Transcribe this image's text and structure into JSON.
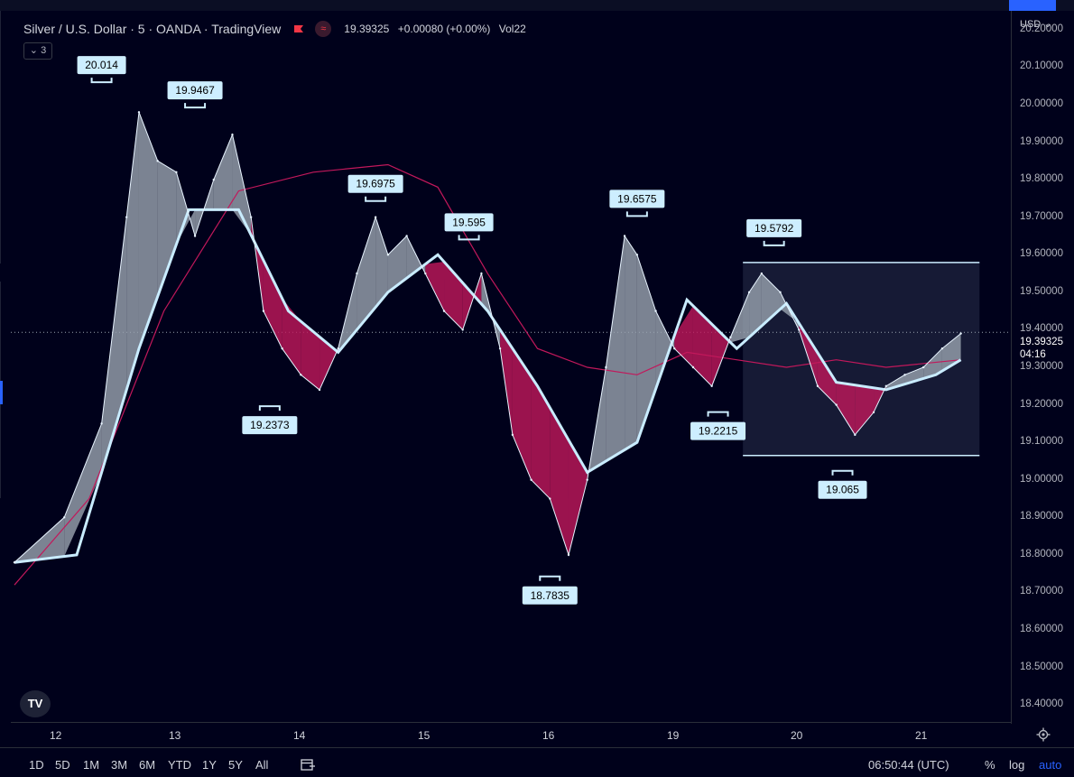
{
  "header": {
    "symbol": "Silver / U.S. Dollar · 5 · OANDA · TradingView",
    "price": "19.39325",
    "change": "+0.00080 (+0.00%)",
    "volume_label": "Vol22",
    "collapse_count": "3",
    "currency": "USD"
  },
  "colors": {
    "background": "#00011b",
    "bull": "#9aa4b0",
    "bear": "#c2185b",
    "ma_fast": "#c9ecff",
    "ma_slow": "#c2185b",
    "label_bg": "#cdeeff"
  },
  "icons": {
    "flag": "flag-icon",
    "wave": "wave-indicator-icon",
    "logo": "tradingview-logo-icon",
    "settings": "gear-icon",
    "compare": "calendar-range-icon"
  },
  "price_axis": {
    "labels": [
      "20.20000",
      "20.10000",
      "20.00000",
      "19.90000",
      "19.80000",
      "19.70000",
      "19.60000",
      "19.50000",
      "19.40000",
      "19.30000",
      "19.20000",
      "19.10000",
      "19.00000",
      "18.90000",
      "18.80000",
      "18.70000",
      "18.60000",
      "18.50000",
      "18.40000"
    ],
    "current_price": "19.39325",
    "countdown": "04:16"
  },
  "time_axis": {
    "labels": [
      "12",
      "13",
      "14",
      "15",
      "16",
      "19",
      "20",
      "21"
    ]
  },
  "bottom_bar": {
    "timeframes": [
      "1D",
      "5D",
      "1M",
      "3M",
      "6M",
      "YTD",
      "1Y",
      "5Y",
      "All"
    ],
    "clock": "06:50:44 (UTC)",
    "percent": "%",
    "log": "log",
    "auto": "auto"
  },
  "chart_data": {
    "type": "line",
    "title": "Silver / U.S. Dollar · 5 · OANDA · TradingView",
    "xlabel": "",
    "ylabel": "",
    "x_tick_labels": [
      "12",
      "13",
      "14",
      "15",
      "16",
      "19",
      "20",
      "21"
    ],
    "ylim": [
      18.35,
      20.25
    ],
    "grid": false,
    "series": [
      {
        "name": "",
        "x": [
          0,
          0.4,
          0.7,
          0.9,
          1.0,
          1.15,
          1.3,
          1.45,
          1.6,
          1.75,
          1.9,
          2.0,
          2.15,
          2.3,
          2.45,
          2.6,
          2.75,
          2.9,
          3.0,
          3.15,
          3.3,
          3.45,
          3.6,
          3.75,
          3.9,
          4.0,
          4.15,
          4.3,
          4.45,
          4.6,
          4.75,
          4.9,
          5.0,
          5.15,
          5.3,
          5.45,
          5.6,
          5.75,
          5.9,
          6.0,
          6.15,
          6.3,
          6.45,
          6.6,
          6.75,
          6.9,
          7.0,
          7.15,
          7.3,
          7.45,
          7.6
        ],
        "values": [
          18.78,
          18.9,
          19.15,
          19.7,
          19.98,
          19.85,
          19.82,
          19.65,
          19.8,
          19.92,
          19.7,
          19.45,
          19.35,
          19.28,
          19.24,
          19.35,
          19.55,
          19.7,
          19.6,
          19.65,
          19.55,
          19.45,
          19.4,
          19.55,
          19.35,
          19.12,
          19.0,
          18.95,
          18.8,
          19.0,
          19.3,
          19.65,
          19.6,
          19.45,
          19.35,
          19.3,
          19.25,
          19.38,
          19.5,
          19.55,
          19.5,
          19.4,
          19.25,
          19.2,
          19.12,
          19.18,
          19.25,
          19.28,
          19.3,
          19.35,
          19.39
        ]
      },
      {
        "name": "",
        "x": [
          0,
          0.5,
          1.0,
          1.4,
          1.8,
          2.2,
          2.6,
          3.0,
          3.4,
          3.8,
          4.2,
          4.6,
          5.0,
          5.4,
          5.8,
          6.2,
          6.6,
          7.0,
          7.4,
          7.6
        ],
        "values": [
          18.78,
          18.8,
          19.35,
          19.72,
          19.72,
          19.45,
          19.34,
          19.5,
          19.6,
          19.45,
          19.25,
          19.02,
          19.1,
          19.48,
          19.35,
          19.47,
          19.26,
          19.24,
          19.28,
          19.32
        ]
      },
      {
        "name": "",
        "x": [
          0,
          0.6,
          1.2,
          1.8,
          2.4,
          3.0,
          3.4,
          3.8,
          4.2,
          4.6,
          5.0,
          5.4,
          5.8,
          6.2,
          6.6,
          7.0,
          7.6
        ],
        "values": [
          18.72,
          18.95,
          19.45,
          19.77,
          19.82,
          19.84,
          19.78,
          19.55,
          19.35,
          19.3,
          19.28,
          19.34,
          19.32,
          19.3,
          19.32,
          19.3,
          19.32
        ]
      }
    ],
    "pivot_labels": [
      {
        "x": 0.7,
        "value": 20.014,
        "text": "20.014",
        "kind": "high"
      },
      {
        "x": 1.45,
        "value": 19.9467,
        "text": "19.9467",
        "kind": "high"
      },
      {
        "x": 2.05,
        "value": 19.2373,
        "text": "19.2373",
        "kind": "low"
      },
      {
        "x": 2.9,
        "value": 19.6975,
        "text": "19.6975",
        "kind": "high"
      },
      {
        "x": 3.65,
        "value": 19.595,
        "text": "19.595",
        "kind": "high"
      },
      {
        "x": 4.3,
        "value": 18.7835,
        "text": "18.7835",
        "kind": "low"
      },
      {
        "x": 5.0,
        "value": 19.6575,
        "text": "19.6575",
        "kind": "high"
      },
      {
        "x": 5.65,
        "value": 19.2215,
        "text": "19.2215",
        "kind": "low"
      },
      {
        "x": 6.1,
        "value": 19.5792,
        "text": "19.5792",
        "kind": "high"
      },
      {
        "x": 6.65,
        "value": 19.065,
        "text": "19.065",
        "kind": "low"
      }
    ],
    "range_box": {
      "x_start": 5.85,
      "x_end": 7.75,
      "high": 19.5792,
      "low": 19.065
    },
    "current_price": 19.39325
  }
}
